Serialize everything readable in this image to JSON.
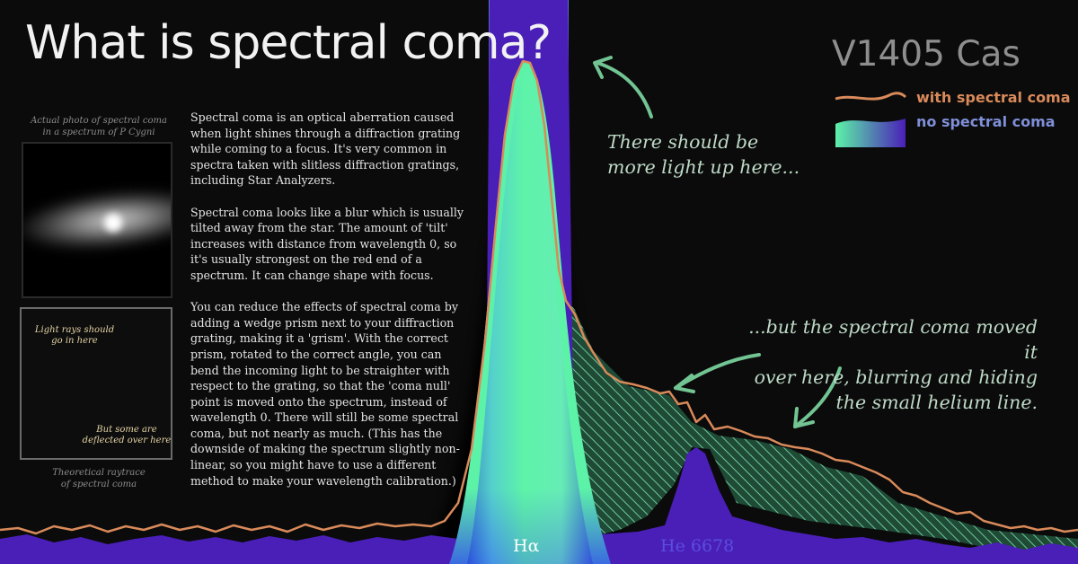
{
  "title": "What is spectral coma?",
  "star": "V1405 Cas",
  "legend": {
    "with_coma": "with spectral coma",
    "no_coma": "no spectral coma",
    "colors": {
      "with_coma": "#d98a5a",
      "no_coma": "#7f8fd8",
      "no_coma_fill": "#4a1fb8",
      "peak_fill": "#5cf2a8"
    }
  },
  "photo_caption": [
    "Actual photo of spectral coma",
    "in a spectrum of P Cygni"
  ],
  "raytrace_caption": [
    "Theoretical raytrace",
    "of spectral coma"
  ],
  "raytrace_labels": {
    "top": [
      "Light rays should",
      "go in here"
    ],
    "bottom": [
      "But some are",
      "deflected over here"
    ]
  },
  "body_paragraphs": [
    "Spectral coma is an optical aberration caused when light shines through a diffraction grating while coming to a focus. It's very common in spectra taken with slitless diffraction gratings, including Star Analyzers.",
    "Spectral coma looks like a blur which is usually tilted away from the star. The amount of 'tilt' increases with distance from wavelength 0, so it's usually strongest on the red end of a spectrum. It can change shape with focus.",
    "You can reduce the effects of spectral coma by adding a wedge prism next to your diffraction grating, making it a 'grism'. With the correct prism, rotated to the correct angle, you can bend the incoming light to be straighter with respect to the grating, so that the 'coma null' point is moved onto the spectrum, instead of wavelength 0. There will still be some spectral coma, but not nearly as much. (This has the downside of making the spectrum slightly non-linear, so you might have to use a different method to make your wavelength calibration.)"
  ],
  "annotation_top": [
    "There should be",
    "more light up here..."
  ],
  "annotation_bottom": [
    "...but the spectral coma moved it",
    "over here, blurring and hiding",
    "the small helium line."
  ],
  "lines": {
    "h_alpha": "Hα",
    "helium": "He 6678"
  }
}
